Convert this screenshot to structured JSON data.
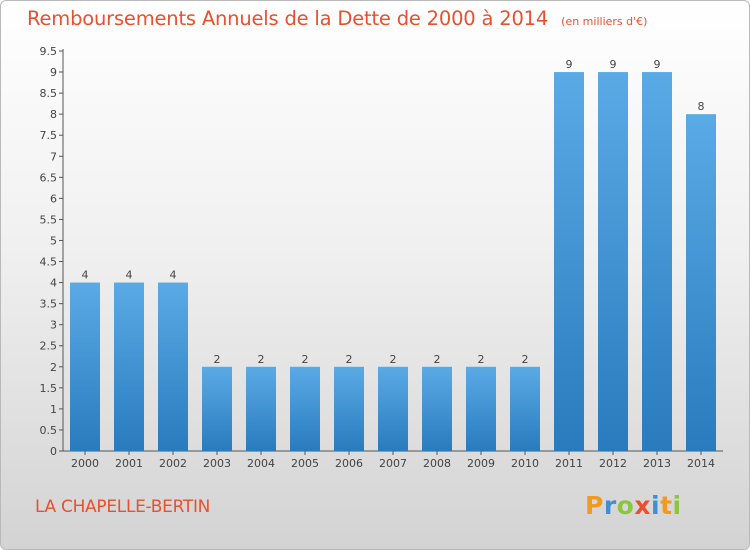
{
  "header": {
    "title": "Remboursements Annuels de la Dette de 2000 à 2014",
    "unit": "(en milliers d'€)"
  },
  "footer": {
    "commune": "LA CHAPELLE-BERTIN",
    "brand": "Proxiti"
  },
  "colors": {
    "title": "#e8502f",
    "bar_light": "#5aaae6",
    "bar_dark": "#2a7bbd",
    "logo_letters": [
      "#f29a1f",
      "#3e8fd4",
      "#8cc63f",
      "#e8502f",
      "#3e8fd4",
      "#f29a1f",
      "#8cc63f"
    ]
  },
  "chart_data": {
    "type": "bar",
    "title": "Remboursements Annuels de la Dette de 2000 à 2014",
    "subtitle": "(en milliers d'€)",
    "categories": [
      "2000",
      "2001",
      "2002",
      "2003",
      "2004",
      "2005",
      "2006",
      "2007",
      "2008",
      "2009",
      "2010",
      "2011",
      "2012",
      "2013",
      "2014"
    ],
    "values": [
      4,
      4,
      4,
      2,
      2,
      2,
      2,
      2,
      2,
      2,
      2,
      9,
      9,
      9,
      8
    ],
    "data_labels": [
      "4",
      "4",
      "4",
      "2",
      "2",
      "2",
      "2",
      "2",
      "2",
      "2",
      "2",
      "9",
      "9",
      "9",
      "8"
    ],
    "ylim": [
      0,
      9.5
    ],
    "yticks": [
      0,
      0.5,
      1,
      1.5,
      2,
      2.5,
      3,
      3.5,
      4,
      4.5,
      5,
      5.5,
      6,
      6.5,
      7,
      7.5,
      8,
      8.5,
      9,
      9.5
    ],
    "ytick_labels": [
      "0",
      "0.5",
      "1",
      "1.5",
      "2",
      "2.5",
      "3",
      "3.5",
      "4",
      "4.5",
      "5",
      "5.5",
      "6",
      "6.5",
      "7",
      "7.5",
      "8",
      "8.5",
      "9",
      "9.5"
    ],
    "xlabel": "",
    "ylabel": "",
    "grid": false,
    "legend": "none"
  }
}
